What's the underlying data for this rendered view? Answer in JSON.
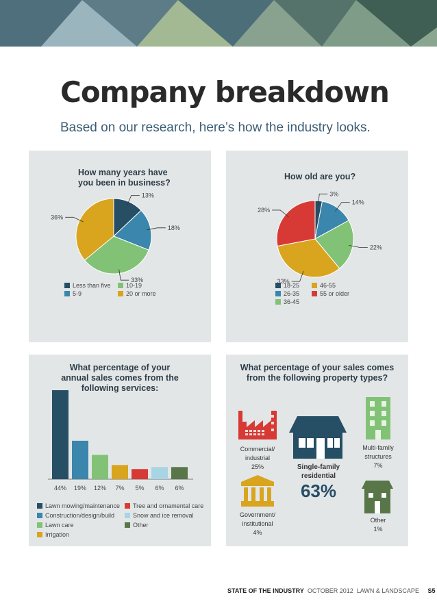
{
  "title": "Company breakdown",
  "subtitle": "Based on our research, here’s how the industry looks.",
  "footer": {
    "section": "STATE OF THE INDUSTRY",
    "issue": "OCTOBER 2012",
    "magazine": "LAWN & LANDSCAPE",
    "page": "S5"
  },
  "chart_data": [
    {
      "type": "pie",
      "title": "How many years have you been in business?",
      "title_lines": [
        "How many years have",
        "you been in business?"
      ],
      "categories": [
        "Less than five",
        "5-9",
        "10-19",
        "20 or more"
      ],
      "values": [
        13,
        18,
        33,
        36
      ],
      "labels": [
        "13%",
        "18%",
        "33%",
        "36%"
      ],
      "colors": [
        "#264e64",
        "#3a86ad",
        "#82c276",
        "#d9a41e"
      ],
      "legend_placement": "bottom"
    },
    {
      "type": "pie",
      "title": "How old are you?",
      "categories": [
        "18-25",
        "26-35",
        "36-45",
        "46-55",
        "55 or older"
      ],
      "values": [
        3,
        14,
        22,
        33,
        28
      ],
      "labels": [
        "3%",
        "14%",
        "22%",
        "33%",
        "28%"
      ],
      "colors": [
        "#264e64",
        "#3a86ad",
        "#82c276",
        "#d9a41e",
        "#d73a35"
      ],
      "legend_placement": "bottom"
    },
    {
      "type": "bar",
      "title": "What percentage of your annual sales comes from the following services:",
      "title_lines": [
        "What percentage of your",
        "annual sales comes from the",
        "following services:"
      ],
      "categories": [
        "Lawn mowing/maintenance",
        "Construction/design/build",
        "Lawn care",
        "Irrigation",
        "Tree and ornamental care",
        "Snow and ice removal",
        "Other"
      ],
      "values": [
        44,
        19,
        12,
        7,
        5,
        6,
        6
      ],
      "labels": [
        "44%",
        "19%",
        "12%",
        "7%",
        "5%",
        "6%",
        "6%"
      ],
      "colors": [
        "#264e64",
        "#3a86ad",
        "#82c276",
        "#d9a41e",
        "#d73a35",
        "#a9d4e4",
        "#587648"
      ],
      "ylim": [
        0,
        44
      ],
      "grid": false,
      "legend_placement": "bottom"
    },
    {
      "type": "table",
      "title": "What percentage of your sales comes from the following property types?",
      "title_lines": [
        "What percentage of your sales comes",
        "from the following property types?"
      ],
      "categories": [
        "Commercial/industrial",
        "Single-family residential",
        "Multi-family structures",
        "Government/institutional",
        "Other"
      ],
      "values": [
        25,
        63,
        7,
        4,
        1
      ],
      "items": [
        {
          "lines": [
            "Commercial/",
            "industrial",
            "25%"
          ],
          "icon": "factory-icon",
          "color": "#d73a35"
        },
        {
          "lines": [
            "Single-family",
            "residential",
            "63%"
          ],
          "icon": "house-icon",
          "color": "#264e64"
        },
        {
          "lines": [
            "Multi-family",
            "structures",
            "7%"
          ],
          "icon": "apartment-building-icon",
          "color": "#82c276"
        },
        {
          "lines": [
            "Government/",
            "institutional",
            "4%"
          ],
          "icon": "government-building-icon",
          "color": "#d9a41e"
        },
        {
          "lines": [
            "Other",
            "1%"
          ],
          "icon": "small-house-icon",
          "color": "#587648"
        }
      ]
    }
  ]
}
